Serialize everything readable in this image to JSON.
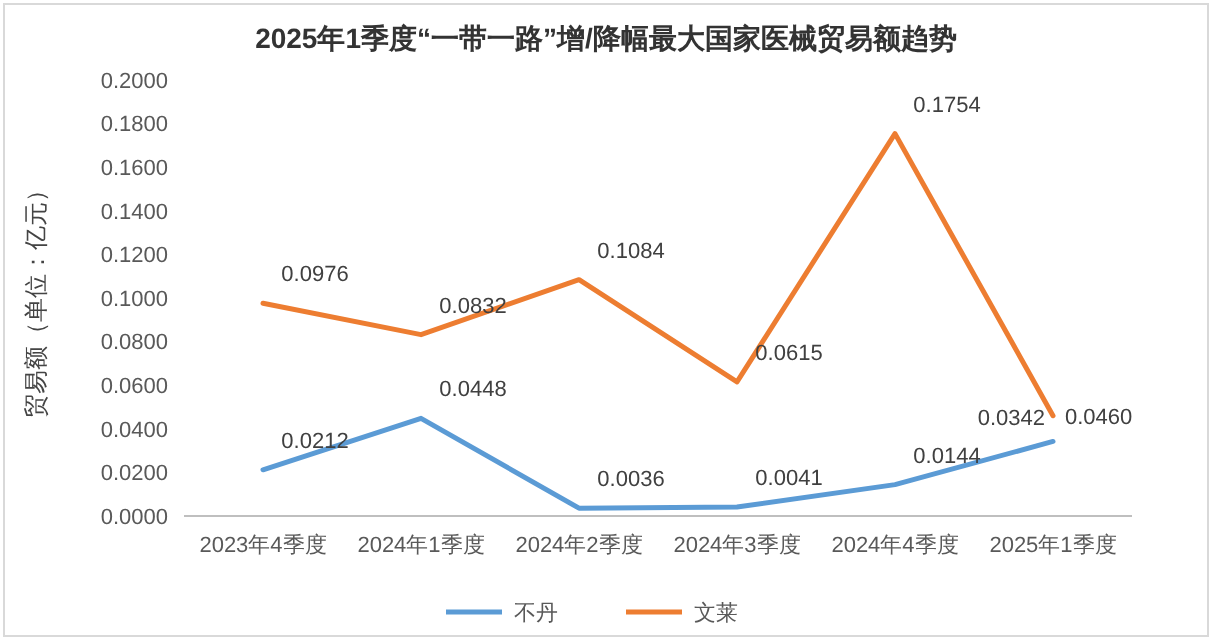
{
  "chart_data": {
    "type": "line",
    "title": "2025年1季度“一带一路”增/降幅最大国家医械贸易额趋势",
    "ylabel": "贸易额（单位：亿元）",
    "categories": [
      "2023年4季度",
      "2024年1季度",
      "2024年2季度",
      "2024年3季度",
      "2024年4季度",
      "2025年1季度"
    ],
    "series": [
      {
        "name": "不丹",
        "color": "#5b9bd5",
        "values": [
          0.0212,
          0.0448,
          0.0036,
          0.0041,
          0.0144,
          0.0342
        ],
        "value_labels": [
          "0.0212",
          "0.0448",
          "0.0036",
          "0.0041",
          "0.0144",
          "0.0342"
        ]
      },
      {
        "name": "文莱",
        "color": "#ed7d31",
        "values": [
          0.0976,
          0.0832,
          0.1084,
          0.0615,
          0.1754,
          0.046
        ],
        "value_labels": [
          "0.0976",
          "0.0832",
          "0.1084",
          "0.0615",
          "0.1754",
          "0.0460"
        ]
      }
    ],
    "ylim": [
      0,
      0.2
    ],
    "yticks": [
      {
        "value": 0,
        "label": "0.0000"
      },
      {
        "value": 0.02,
        "label": "0.0200"
      },
      {
        "value": 0.04,
        "label": "0.0400"
      },
      {
        "value": 0.06,
        "label": "0.0600"
      },
      {
        "value": 0.08,
        "label": "0.0800"
      },
      {
        "value": 0.1,
        "label": "0.1000"
      },
      {
        "value": 0.12,
        "label": "0.1200"
      },
      {
        "value": 0.14,
        "label": "0.1400"
      },
      {
        "value": 0.16,
        "label": "0.1600"
      },
      {
        "value": 0.18,
        "label": "0.1800"
      },
      {
        "value": 0.2,
        "label": "0.2000"
      }
    ],
    "legend": "bottom",
    "marker": "none",
    "line_style": "solid",
    "grid": false
  }
}
